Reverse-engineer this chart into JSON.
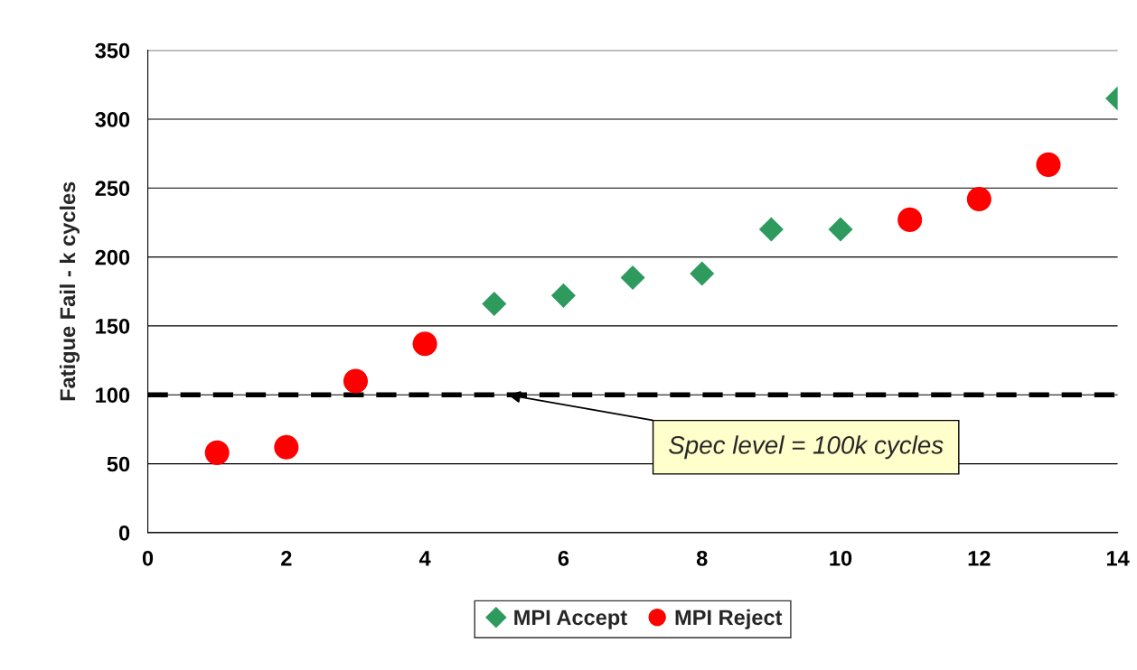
{
  "chart_data": {
    "type": "scatter",
    "ylabel": "Fatigue Fail - k cycles",
    "series": [
      {
        "name": "MPI Accept",
        "color": "#2e9a5e",
        "marker": "diamond",
        "x": [
          5,
          6,
          7,
          8,
          9,
          10,
          14
        ],
        "values": [
          166,
          172,
          185,
          188,
          220,
          220,
          315
        ]
      },
      {
        "name": "MPI Reject",
        "color": "#ff0000",
        "marker": "circle",
        "x": [
          1,
          2,
          3,
          4,
          11,
          12,
          13
        ],
        "values": [
          58,
          62,
          110,
          137,
          227,
          242,
          267
        ]
      }
    ],
    "xlim": [
      0,
      14
    ],
    "xticks": [
      0,
      2,
      4,
      6,
      8,
      10,
      12,
      14
    ],
    "ylim": [
      0,
      350
    ],
    "yticks": [
      0,
      50,
      100,
      150,
      200,
      250,
      300,
      350
    ],
    "ref_lines": [
      {
        "axis": "y",
        "value": 100,
        "color": "#000000",
        "line_style": "dashed"
      }
    ],
    "annotations": [
      {
        "text": "Spec level = 100k cycles",
        "x": 5.2,
        "y": 100
      }
    ],
    "grid": "y",
    "legend": "bottom"
  }
}
